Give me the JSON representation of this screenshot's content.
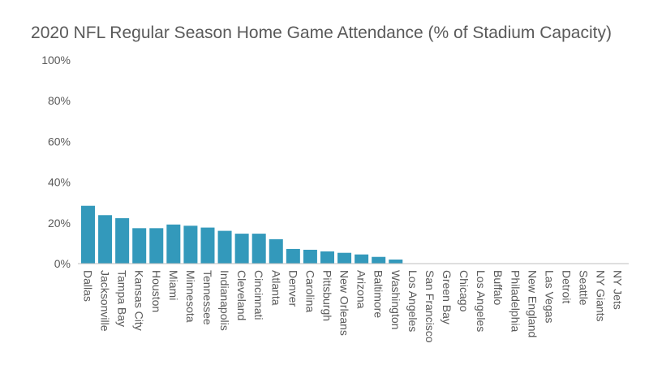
{
  "chart_data": {
    "type": "bar",
    "title": "2020 NFL Regular Season Home Game Attendance (% of Stadium Capacity)",
    "xlabel": "",
    "ylabel": "",
    "ylim": [
      0,
      100
    ],
    "yticks": [
      "0%",
      "20%",
      "40%",
      "60%",
      "80%",
      "100%"
    ],
    "grid": false,
    "bar_color": "#3399BB",
    "categories": [
      "Dallas",
      "Jacksonville",
      "Tampa Bay",
      "Kansas City",
      "Houston",
      "Miami",
      "Minnesota",
      "Tennessee",
      "Indianapolis",
      "Cleveland",
      "Cincinnati",
      "Atlanta",
      "Denver",
      "Carolina",
      "Pittsburgh",
      "New Orleans",
      "Arizona",
      "Baltimore",
      "Washington",
      "Los Angeles",
      "San Francisco",
      "Green Bay",
      "Chicago",
      "Los Angeles",
      "Buffalo",
      "Philadelphia",
      "New England",
      "Las Vegas",
      "Detroit",
      "Seattle",
      "NY Giants",
      "NY Jets"
    ],
    "values": [
      28.4,
      23.8,
      22.3,
      17.4,
      17.4,
      19.2,
      18.6,
      17.7,
      16.1,
      14.7,
      14.7,
      12.0,
      7.2,
      6.8,
      6.0,
      5.3,
      4.5,
      3.3,
      2.0,
      0,
      0,
      0,
      0,
      0,
      0,
      0,
      0,
      0,
      0,
      0,
      0,
      0
    ]
  }
}
